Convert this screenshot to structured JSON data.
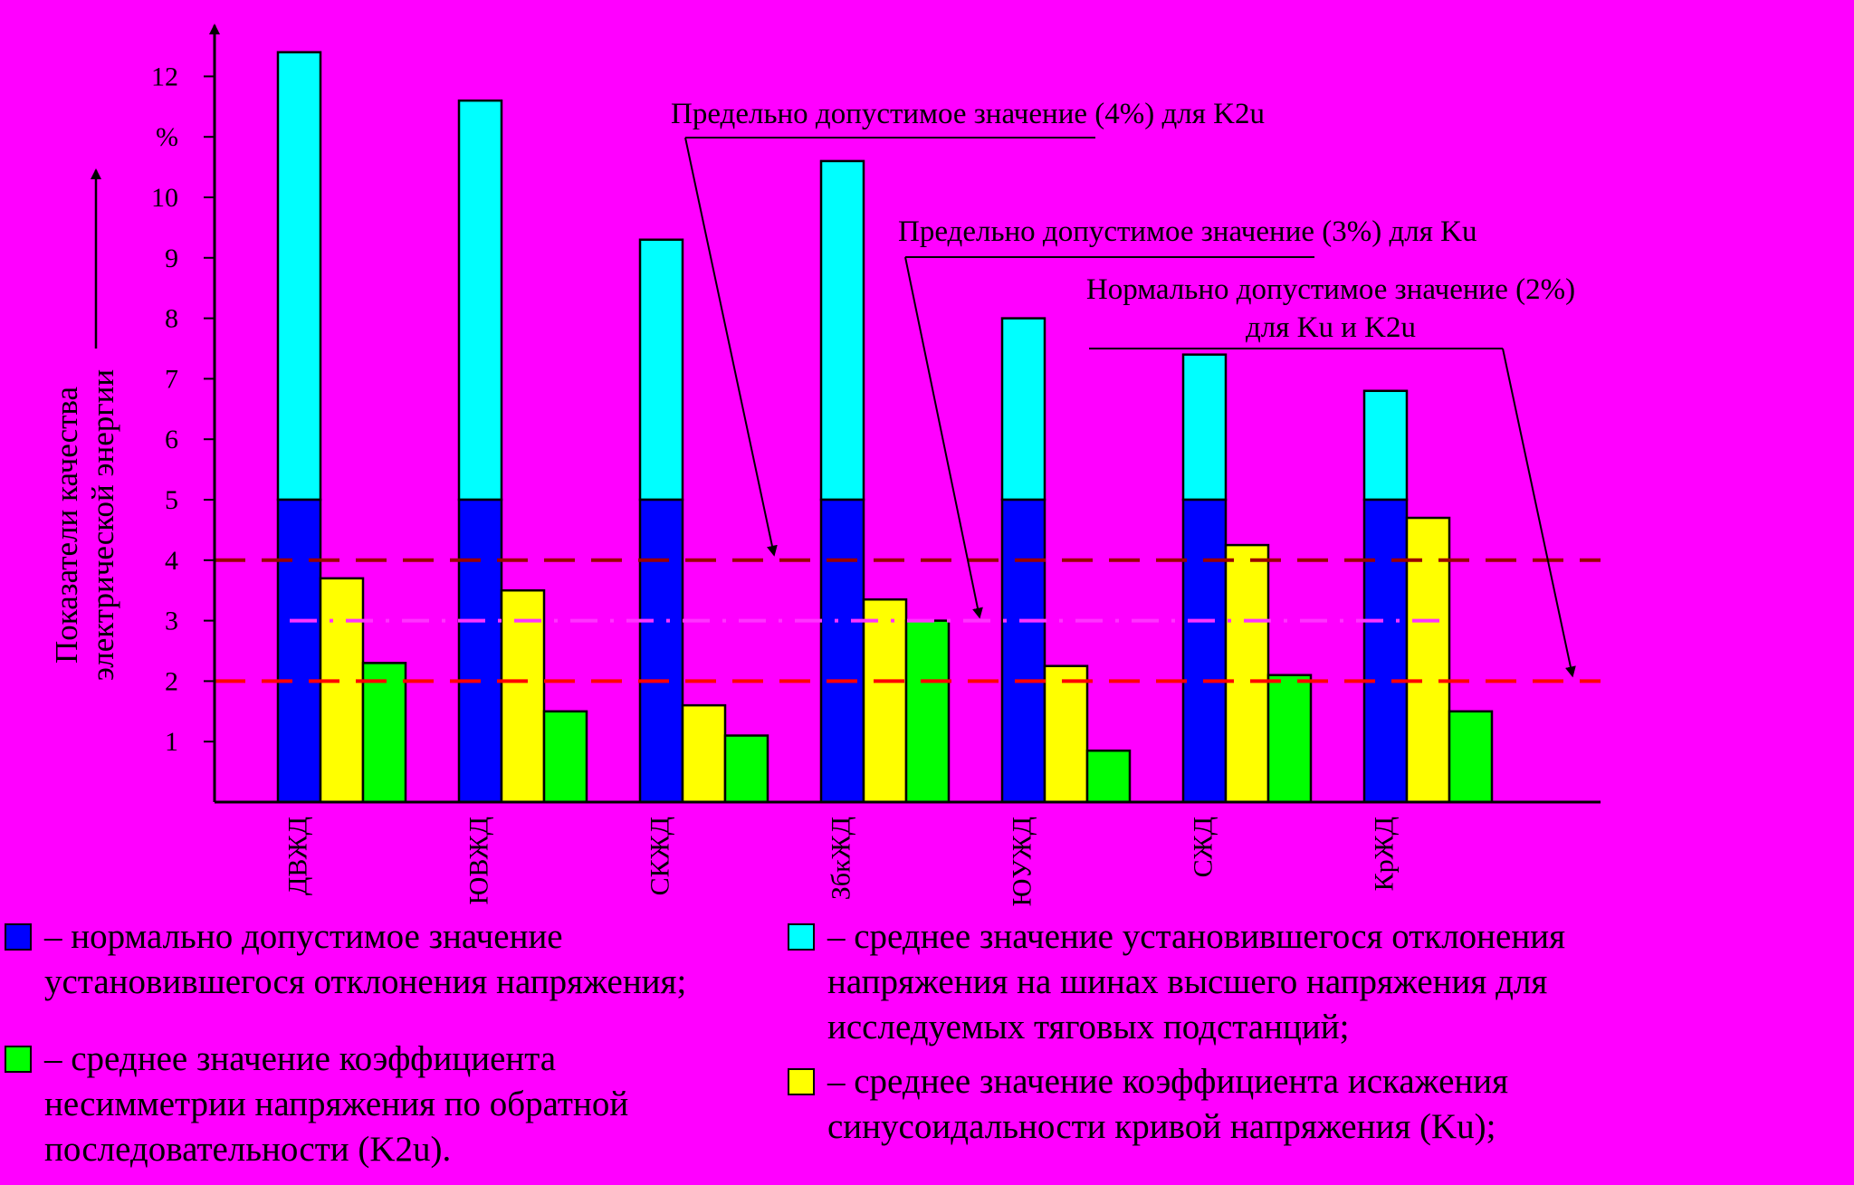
{
  "chart_data": {
    "type": "bar",
    "ylabel": "Показатели качества\nэлектрической энергии",
    "y_unit_label": "%",
    "yticks": [
      1,
      2,
      3,
      4,
      5,
      6,
      7,
      8,
      9,
      10,
      12
    ],
    "ylim": [
      0,
      12.6
    ],
    "categories": [
      "ДВЖД",
      "ЮВЖД",
      "СКЖД",
      "ЗбкЖД",
      "ЮУЖД",
      "СЖД",
      "КрЖД"
    ],
    "series": [
      {
        "key": "normal_deviation",
        "color": "#0000ff",
        "values": [
          5,
          5,
          5,
          5,
          5,
          5,
          5
        ]
      },
      {
        "key": "avg_deviation",
        "color": "#00ffff",
        "values": [
          12.4,
          11.6,
          9.3,
          10.6,
          8.0,
          7.4,
          6.8
        ]
      },
      {
        "key": "avg_ku",
        "color": "#ffff00",
        "values": [
          3.7,
          3.5,
          1.6,
          3.35,
          2.25,
          4.25,
          4.7
        ]
      },
      {
        "key": "avg_k2u",
        "color": "#00ff00",
        "values": [
          2.3,
          1.5,
          1.1,
          3.0,
          0.85,
          2.1,
          1.5
        ]
      }
    ],
    "reference_lines": [
      {
        "value": 4,
        "color": "#990000",
        "style": "dash"
      },
      {
        "value": 3,
        "color": "#ff33ff",
        "style": "dashdot"
      },
      {
        "value": 2,
        "color": "#ff0000",
        "style": "dash"
      }
    ],
    "annotations": [
      {
        "text": "Предельно допустимое значение (4%) для K2u",
        "target": 4
      },
      {
        "text": "Предельно допустимое значение (3%) для Ku",
        "target": 3
      },
      {
        "text": "Нормально допустимое значение (2%)\nдля Ku и K2u",
        "target": 2
      }
    ]
  },
  "legend": [
    {
      "color": "#0000ff",
      "text": "– нормально допустимое значение\nустановившегося отклонения напряжения;"
    },
    {
      "color": "#00ff00",
      "text": "– среднее значение коэффициента\nнесимметрии напряжения по обратной\nпоследовательности (K2u)."
    },
    {
      "color": "#00ffff",
      "text": "– среднее значение установившегося отклонения\nнапряжения на шинах высшего напряжения для\nисследуемых тяговых подстанций;"
    },
    {
      "color": "#ffff00",
      "text": "– среднее значение коэффициента искажения\nсинусоидальности кривой напряжения (Ku);"
    }
  ]
}
